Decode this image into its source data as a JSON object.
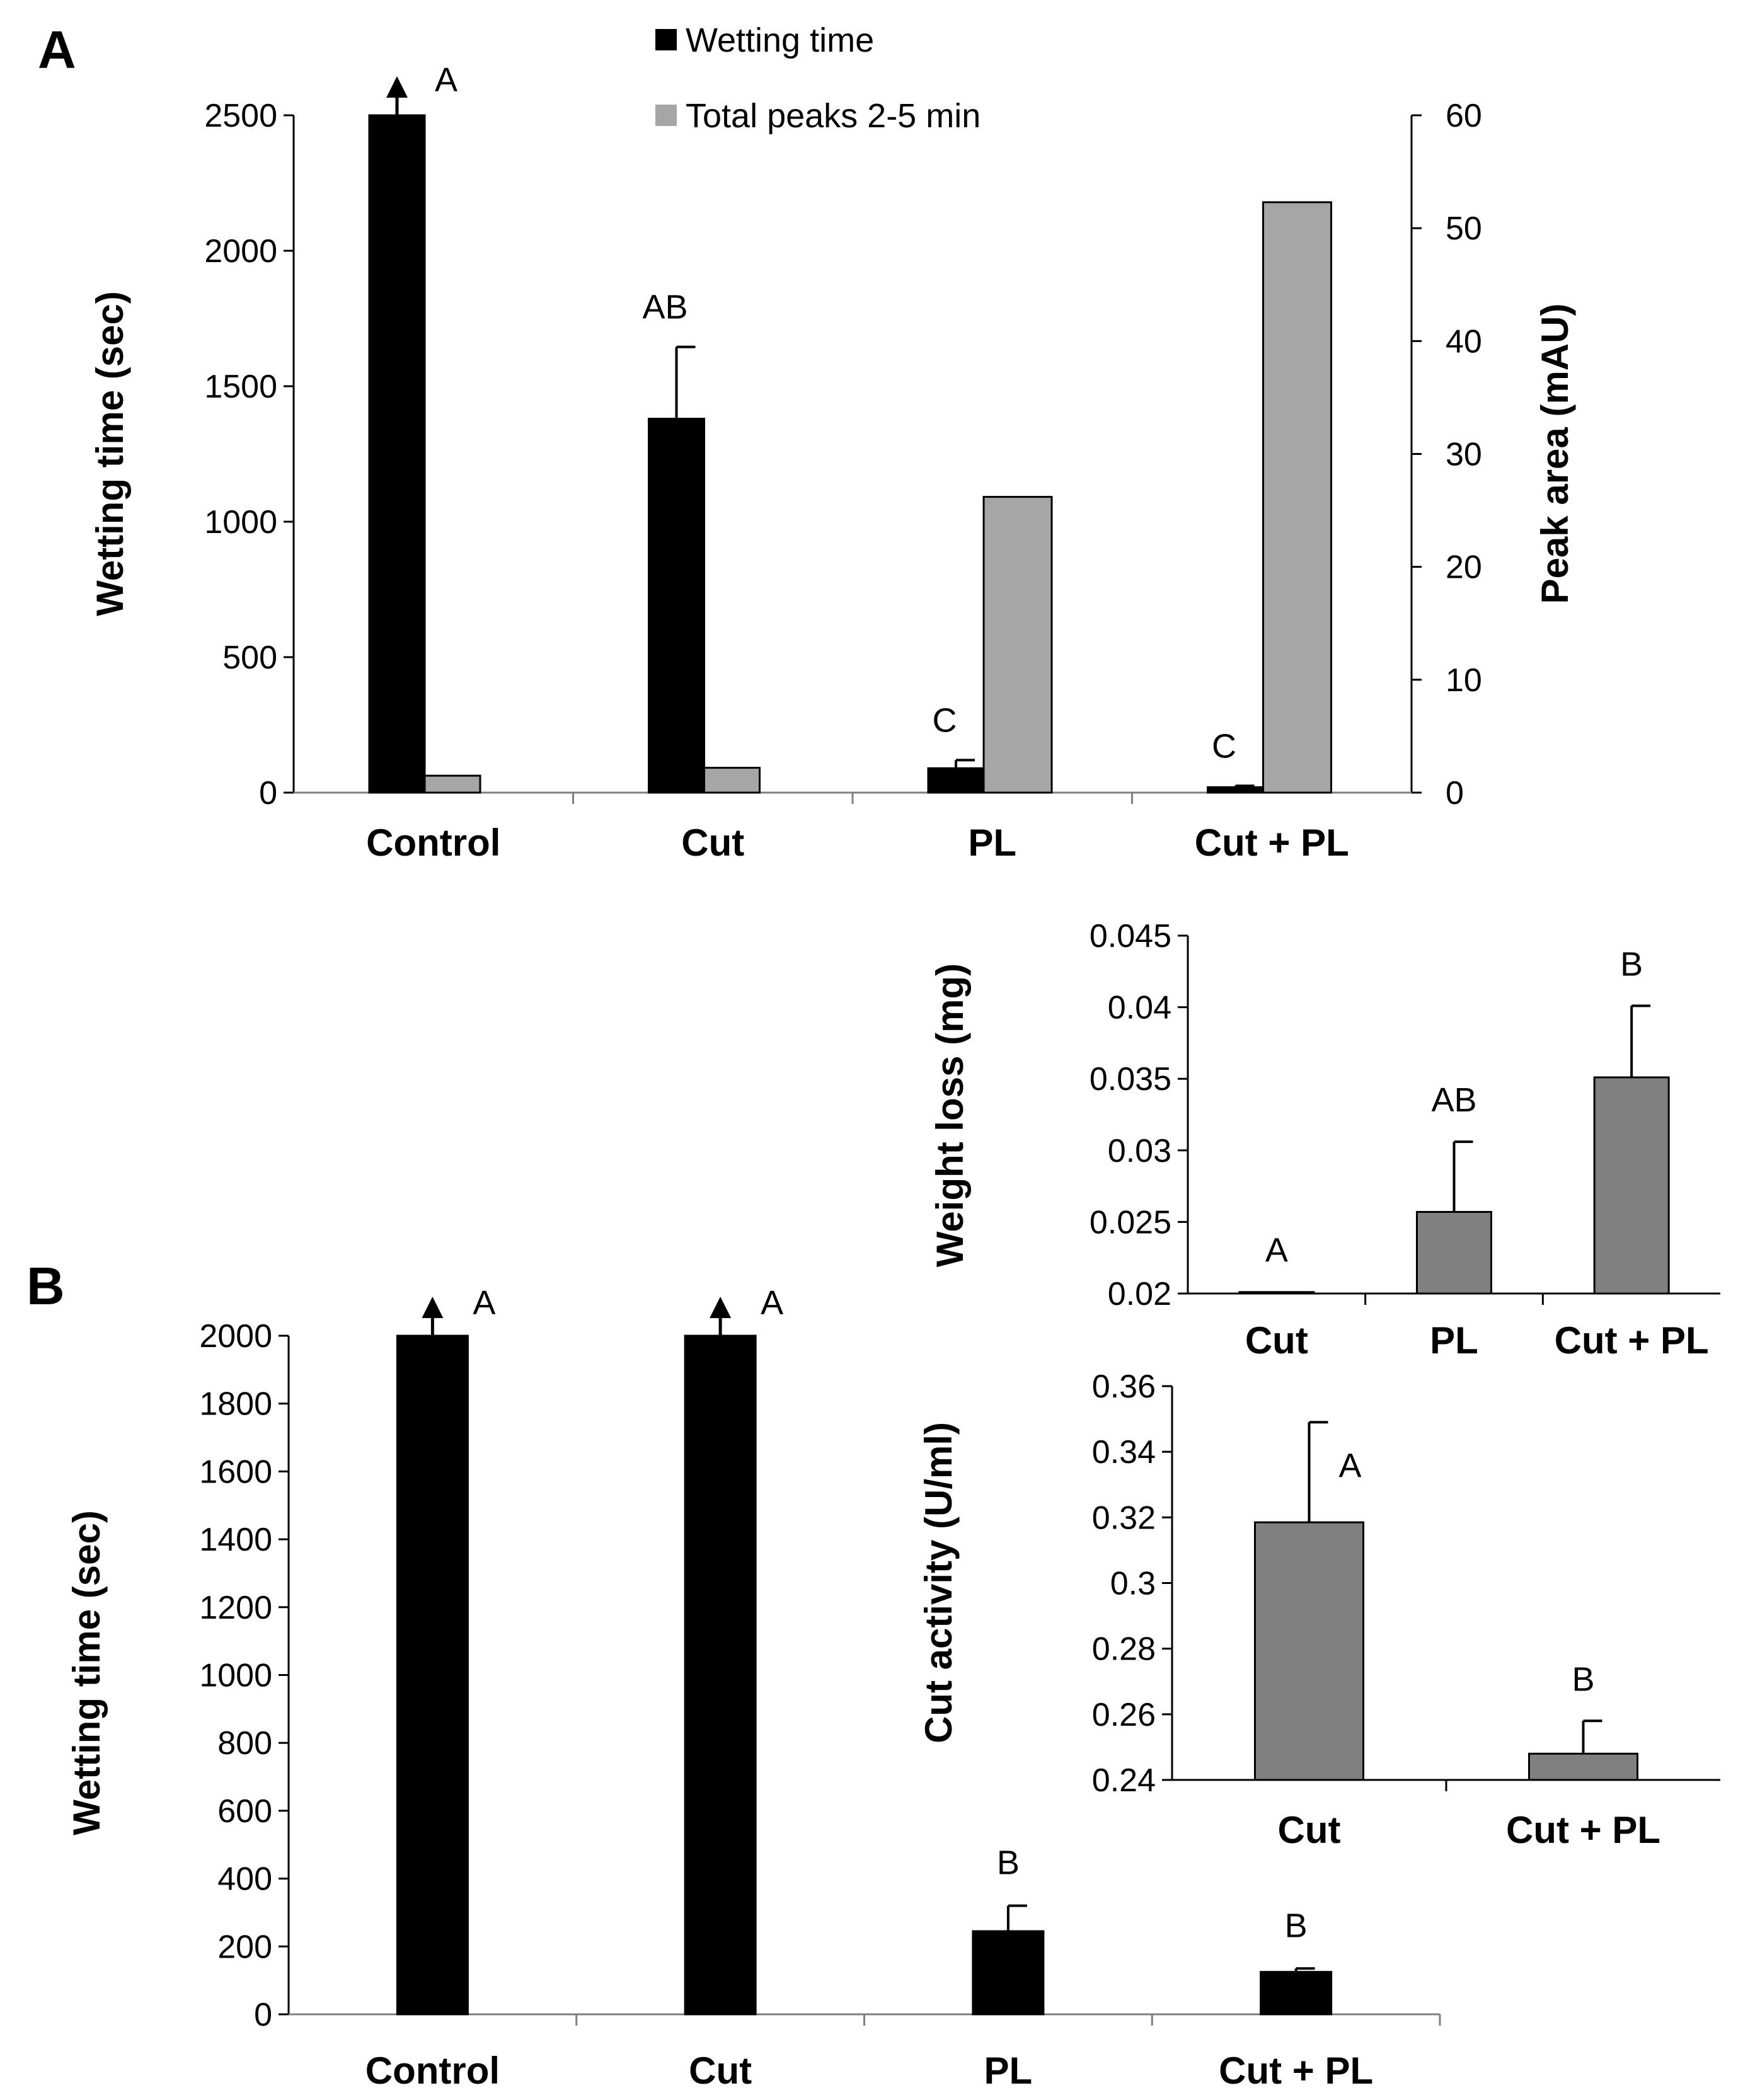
{
  "colors": {
    "wetting": "#000000",
    "peaks": "#a6a6a6",
    "inset": "#808080",
    "axis": "#7f7f7f"
  },
  "icons": {
    "arrow_up": "arrow-up-icon"
  },
  "chart_data": [
    {
      "id": "A",
      "panel_label": "A",
      "type": "bar",
      "categories": [
        "Control",
        "Cut",
        "PL",
        "Cut + PL"
      ],
      "series": [
        {
          "name": "Wetting time",
          "axis": "left",
          "values": [
            2500,
            1380,
            90,
            20
          ],
          "errors": [
            0,
            265,
            30,
            5
          ],
          "arrow": [
            true,
            false,
            false,
            false
          ],
          "significance": [
            "A",
            "AB",
            "C",
            "C"
          ]
        },
        {
          "name": "Total peaks 2-5 min",
          "axis": "right",
          "values": [
            1.5,
            2.2,
            26.2,
            52.3
          ]
        }
      ],
      "ylabel": "Wetting time (sec)",
      "ylim": [
        0,
        2500
      ],
      "yticks": [
        "0",
        "500",
        "1000",
        "1500",
        "2000",
        "2500"
      ],
      "y2label": "Peak area  (mAU)",
      "y2lim": [
        0,
        60
      ],
      "y2ticks": [
        "0",
        "10",
        "20",
        "30",
        "40",
        "50",
        "60"
      ],
      "legend": [
        "Wetting time",
        "Total peaks 2-5 min"
      ]
    },
    {
      "id": "A-inset",
      "type": "bar",
      "categories": [
        "Cut",
        "PL",
        "Cut + PL"
      ],
      "series": [
        {
          "name": "Weight loss",
          "values": [
            0.0201,
            0.0257,
            0.0351
          ],
          "errors": [
            0,
            0.0049,
            0.005
          ],
          "significance": [
            "A",
            "AB",
            "B"
          ]
        }
      ],
      "ylabel": "Weight loss (mg)",
      "ylim": [
        0.02,
        0.045
      ],
      "yticks": [
        "0.02",
        "0.025",
        "0.03",
        "0.035",
        "0.04",
        "0.045"
      ]
    },
    {
      "id": "B",
      "panel_label": "B",
      "type": "bar",
      "categories": [
        "Control",
        "Cut",
        "PL",
        "Cut + PL"
      ],
      "series": [
        {
          "name": "Wetting time",
          "values": [
            2000,
            2000,
            245,
            125
          ],
          "errors": [
            0,
            0,
            75,
            10
          ],
          "arrow": [
            true,
            true,
            false,
            false
          ],
          "significance": [
            "A",
            "A",
            "B",
            "B"
          ]
        }
      ],
      "ylabel": "Wetting time (sec)",
      "ylim": [
        0,
        2000
      ],
      "yticks": [
        "0",
        "200",
        "400",
        "600",
        "800",
        "1000",
        "1200",
        "1400",
        "1600",
        "1800",
        "2000"
      ]
    },
    {
      "id": "B-inset",
      "type": "bar",
      "categories": [
        "Cut",
        "Cut + PL"
      ],
      "series": [
        {
          "name": "Cut activity",
          "values": [
            0.3185,
            0.248
          ],
          "errors": [
            0.0305,
            0.01
          ],
          "significance": [
            "A",
            "B"
          ]
        }
      ],
      "ylabel": "Cut activity (U/ml)",
      "ylim": [
        0.24,
        0.36
      ],
      "yticks": [
        "0.24",
        "0.26",
        "0.28",
        "0.3",
        "0.32",
        "0.34",
        "0.36"
      ]
    }
  ]
}
